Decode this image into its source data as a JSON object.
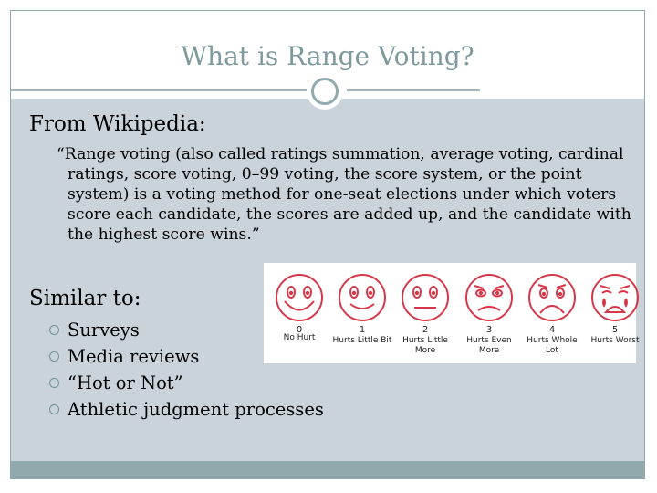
{
  "slide": {
    "title": "What is Range Voting?",
    "section1_heading": "From Wikipedia:",
    "quote": "“Range voting (also called ratings summation, average voting, cardinal ratings, score voting, 0–99 voting, the score system, or the point system) is a voting method for one-seat elections under which voters score each candidate, the scores are added up, and the candidate with the highest score wins.”",
    "section2_heading": "Similar to:",
    "bullets": [
      "Surveys",
      "Media reviews",
      "“Hot or Not”",
      "Athletic judgment processes"
    ]
  },
  "pain_scale": {
    "faces": [
      {
        "number": "0",
        "label": "No Hurt",
        "expression": "happy-face-icon"
      },
      {
        "number": "1",
        "label": "Hurts Little Bit",
        "expression": "smile-face-icon"
      },
      {
        "number": "2",
        "label": "Hurts Little More",
        "expression": "neutral-face-icon"
      },
      {
        "number": "3",
        "label": "Hurts Even More",
        "expression": "sad-face-icon"
      },
      {
        "number": "4",
        "label": "Hurts Whole Lot",
        "expression": "frown-face-icon"
      },
      {
        "number": "5",
        "label": "Hurts Worst",
        "expression": "crying-face-icon"
      }
    ],
    "line_color": "#d6384a"
  },
  "colors": {
    "title": "#7f9a9e",
    "content_background": "#c9d3d9",
    "accent": "#8fa9ac"
  }
}
